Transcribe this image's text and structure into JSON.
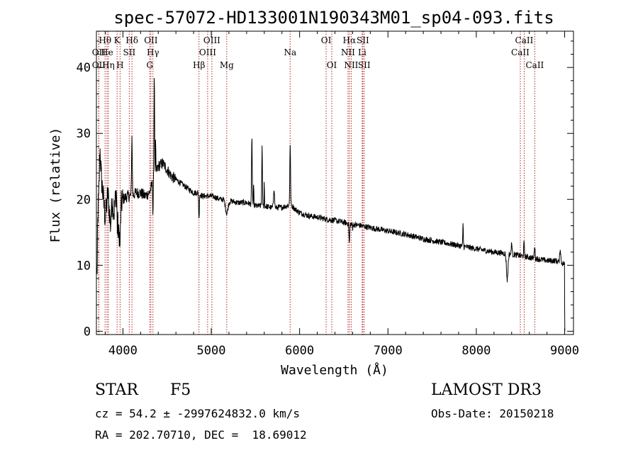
{
  "chart_data": {
    "type": "line",
    "title": "spec-57072-HD133001N190343M01_sp04-093.fits",
    "xlabel": "Wavelength (Å)",
    "ylabel": "Flux (relative)",
    "xlim": [
      3700,
      9100
    ],
    "ylim": [
      -0.5,
      45.5
    ],
    "xticks": [
      4000,
      5000,
      6000,
      7000,
      8000,
      9000
    ],
    "yticks": [
      0,
      10,
      20,
      30,
      40
    ],
    "grid": false,
    "series": [
      {
        "name": "flux",
        "anchors": [
          [
            3700,
            9
          ],
          [
            3720,
            19
          ],
          [
            3750,
            24
          ],
          [
            3780,
            20
          ],
          [
            3800,
            17
          ],
          [
            3830,
            21
          ],
          [
            3860,
            16
          ],
          [
            3880,
            20
          ],
          [
            3900,
            18
          ],
          [
            3930,
            22
          ],
          [
            3950,
            14
          ],
          [
            3970,
            19
          ],
          [
            4000,
            20
          ],
          [
            4050,
            20.5
          ],
          [
            4100,
            20.5
          ],
          [
            4150,
            21
          ],
          [
            4200,
            21
          ],
          [
            4250,
            20.5
          ],
          [
            4300,
            21
          ],
          [
            4350,
            23
          ],
          [
            4400,
            25
          ],
          [
            4450,
            25.5
          ],
          [
            4500,
            24.5
          ],
          [
            4550,
            23.5
          ],
          [
            4600,
            23
          ],
          [
            4650,
            22.5
          ],
          [
            4700,
            22
          ],
          [
            4750,
            21.5
          ],
          [
            4800,
            21
          ],
          [
            4850,
            21
          ],
          [
            4900,
            20.5
          ],
          [
            4950,
            20.5
          ],
          [
            5000,
            20.5
          ],
          [
            5050,
            20.3
          ],
          [
            5100,
            20
          ],
          [
            5150,
            20
          ],
          [
            5200,
            19.8
          ],
          [
            5300,
            19.5
          ],
          [
            5400,
            19.5
          ],
          [
            5500,
            19
          ],
          [
            5600,
            19
          ],
          [
            5700,
            18.7
          ],
          [
            5800,
            18.8
          ],
          [
            5900,
            19.2
          ],
          [
            5950,
            18.5
          ],
          [
            6000,
            18
          ],
          [
            6100,
            17.5
          ],
          [
            6200,
            17.3
          ],
          [
            6300,
            17
          ],
          [
            6400,
            16.8
          ],
          [
            6500,
            16.5
          ],
          [
            6600,
            16.2
          ],
          [
            6700,
            16
          ],
          [
            6800,
            15.7
          ],
          [
            7000,
            15.2
          ],
          [
            7200,
            14.7
          ],
          [
            7400,
            14
          ],
          [
            7600,
            13.5
          ],
          [
            7800,
            13
          ],
          [
            8000,
            12.5
          ],
          [
            8200,
            12
          ],
          [
            8400,
            11.7
          ],
          [
            8600,
            11.2
          ],
          [
            8800,
            10.7
          ],
          [
            8900,
            10.7
          ],
          [
            9000,
            10.2
          ]
        ],
        "features": [
          [
            3708,
            2,
            -9
          ],
          [
            3740,
            8,
            5
          ],
          [
            3935,
            6,
            -4
          ],
          [
            3968,
            8,
            -5
          ],
          [
            4102,
            6,
            9
          ],
          [
            4340,
            4,
            -5
          ],
          [
            4355,
            5,
            16
          ],
          [
            4370,
            3,
            5
          ],
          [
            4861,
            5,
            -4
          ],
          [
            5175,
            20,
            -2
          ],
          [
            5460,
            6,
            10
          ],
          [
            5480,
            3,
            3
          ],
          [
            5575,
            5,
            9
          ],
          [
            5600,
            3,
            4
          ],
          [
            5710,
            8,
            3
          ],
          [
            5893,
            6,
            9
          ],
          [
            6563,
            6,
            -3
          ],
          [
            6600,
            3,
            -1
          ],
          [
            7850,
            4,
            3.5
          ],
          [
            8350,
            12,
            -4
          ],
          [
            8400,
            5,
            2
          ],
          [
            8540,
            6,
            2
          ],
          [
            8660,
            6,
            2
          ],
          [
            8950,
            8,
            2
          ]
        ]
      }
    ],
    "lines": [
      {
        "name": "Hθ",
        "wave": 3798,
        "row": 1
      },
      {
        "name": "OII",
        "wave": 3727,
        "row": 2
      },
      {
        "name": "OII",
        "wave": 3727,
        "row": 3
      },
      {
        "name": "He",
        "wave": 3820,
        "row": 2
      },
      {
        "name": "Hη",
        "wave": 3835,
        "row": 3
      },
      {
        "name": "K",
        "wave": 3934,
        "row": 1
      },
      {
        "name": "SII",
        "wave": 4072,
        "row": 2
      },
      {
        "name": "H",
        "wave": 3968,
        "row": 3
      },
      {
        "name": "Hδ",
        "wave": 4102,
        "row": 1
      },
      {
        "name": "OII",
        "wave": 4317,
        "row": 1
      },
      {
        "name": "Hγ",
        "wave": 4340,
        "row": 2
      },
      {
        "name": "G",
        "wave": 4304,
        "row": 3
      },
      {
        "name": "Hβ",
        "wave": 4861,
        "row": 3
      },
      {
        "name": "OIII",
        "wave": 5007,
        "row": 1
      },
      {
        "name": "OIII",
        "wave": 4959,
        "row": 2
      },
      {
        "name": "Mg",
        "wave": 5175,
        "row": 3
      },
      {
        "name": "Na",
        "wave": 5893,
        "row": 2
      },
      {
        "name": "OI",
        "wave": 6300,
        "row": 1
      },
      {
        "name": "OI",
        "wave": 6364,
        "row": 3
      },
      {
        "name": "Hα",
        "wave": 6563,
        "row": 1
      },
      {
        "name": "SII",
        "wave": 6716,
        "row": 1
      },
      {
        "name": "NII",
        "wave": 6548,
        "row": 2
      },
      {
        "name": "Li",
        "wave": 6708,
        "row": 2
      },
      {
        "name": "NII",
        "wave": 6584,
        "row": 3
      },
      {
        "name": "SII",
        "wave": 6731,
        "row": 3
      },
      {
        "name": "CaII",
        "wave": 8542,
        "row": 1
      },
      {
        "name": "CaII",
        "wave": 8498,
        "row": 2
      },
      {
        "name": "CaII",
        "wave": 8662,
        "row": 3
      }
    ]
  },
  "info": {
    "class_label": "STAR",
    "subclass": "F5",
    "survey": "LAMOST DR3",
    "cz_line": "cz = 54.2 ± -2997624832.0 km/s",
    "obs_date": "Obs-Date: 20150218",
    "coords": "RA = 202.70710, DEC =  18.69012"
  },
  "colors": {
    "spectrum": "#000000",
    "line_markers": "#b22222",
    "axes": "#000000"
  }
}
